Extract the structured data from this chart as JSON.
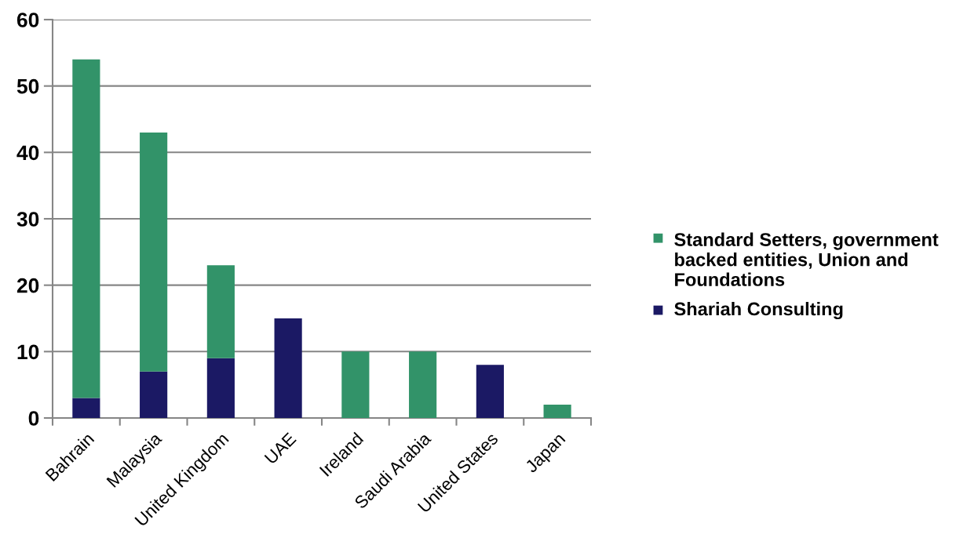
{
  "chart_data": {
    "type": "bar",
    "stacked": true,
    "categories": [
      "Bahrain",
      "Malaysia",
      "United Kingdom",
      "UAE",
      "Ireland",
      "Saudi Arabia",
      "United States",
      "Japan"
    ],
    "series": [
      {
        "name": "Shariah Consulting",
        "color": "#1b1964",
        "values": [
          3,
          7,
          9,
          15,
          null,
          null,
          8,
          null
        ]
      },
      {
        "name": "Standard Setters, government backed entities, Union and Foundations",
        "color": "#329369",
        "values": [
          51,
          36,
          14,
          null,
          10,
          10,
          null,
          2
        ]
      }
    ],
    "ylim": [
      0,
      60
    ],
    "yticks": [
      0,
      10,
      20,
      30,
      40,
      50,
      60
    ],
    "grid": "y",
    "legend": "right"
  }
}
